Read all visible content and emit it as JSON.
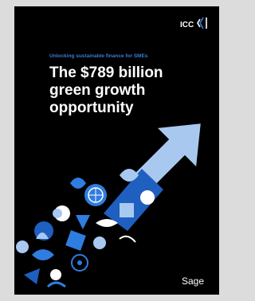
{
  "header": {
    "logo": "ICC"
  },
  "subtitle": "Unlocking sustainable finance for SMEs",
  "title_lines": [
    "The $789 billion",
    "green growth",
    "opportunity"
  ],
  "footer": {
    "brand": "Sage"
  }
}
